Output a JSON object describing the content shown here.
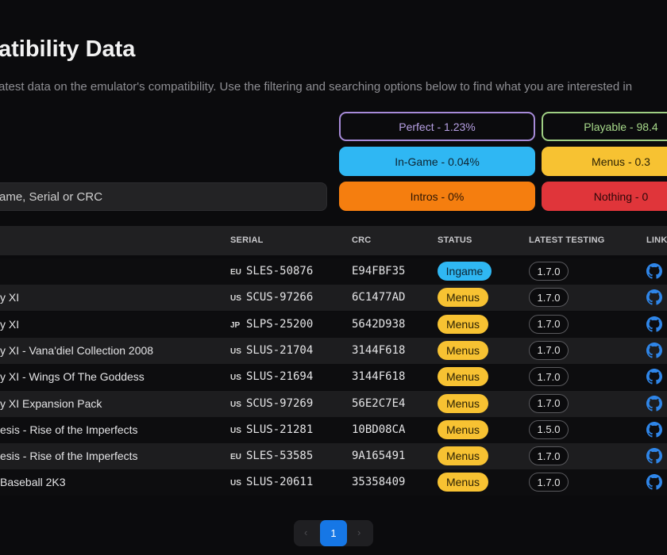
{
  "page": {
    "title": "atibility Data",
    "subtitle": "atest data on the emulator's compatibility. Use the filtering and searching options below to find what you are interested in"
  },
  "search": {
    "placeholder": "ame, Serial or CRC"
  },
  "filters": [
    {
      "label": "Perfect - 1.23%",
      "color": "#a78bd9"
    },
    {
      "label": "Playable - 98.4",
      "color": "#9fcf83"
    },
    {
      "label": "In-Game - 0.04%",
      "color": "#2fb7f3"
    },
    {
      "label": "Menus - 0.3",
      "color": "#f7c232"
    },
    {
      "label": "Intros - 0%",
      "color": "#f57e0f"
    },
    {
      "label": "Nothing - 0",
      "color": "#e0353a"
    }
  ],
  "table": {
    "headers": {
      "serial": "SERIAL",
      "crc": "CRC",
      "status": "STATUS",
      "latest": "LATEST TESTING",
      "links": "LINKS"
    },
    "rows": [
      {
        "name": "",
        "region": "EU",
        "serial": "SLES-50876",
        "crc": "E94FBF35",
        "status": "Ingame",
        "version": "1.7.0"
      },
      {
        "name": "y XI",
        "region": "US",
        "serial": "SCUS-97266",
        "crc": "6C1477AD",
        "status": "Menus",
        "version": "1.7.0"
      },
      {
        "name": "y XI",
        "region": "JP",
        "serial": "SLPS-25200",
        "crc": "5642D938",
        "status": "Menus",
        "version": "1.7.0"
      },
      {
        "name": "y XI - Vana'diel Collection 2008",
        "region": "US",
        "serial": "SLUS-21704",
        "crc": "3144F618",
        "status": "Menus",
        "version": "1.7.0"
      },
      {
        "name": "y XI - Wings Of The Goddess",
        "region": "US",
        "serial": "SLUS-21694",
        "crc": "3144F618",
        "status": "Menus",
        "version": "1.7.0"
      },
      {
        "name": "y XI Expansion Pack",
        "region": "US",
        "serial": "SCUS-97269",
        "crc": "56E2C7E4",
        "status": "Menus",
        "version": "1.7.0"
      },
      {
        "name": "esis - Rise of the Imperfects",
        "region": "US",
        "serial": "SLUS-21281",
        "crc": "10BD08CA",
        "status": "Menus",
        "version": "1.5.0"
      },
      {
        "name": "esis - Rise of the Imperfects",
        "region": "EU",
        "serial": "SLES-53585",
        "crc": "9A165491",
        "status": "Menus",
        "version": "1.7.0"
      },
      {
        "name": " Baseball 2K3",
        "region": "US",
        "serial": "SLUS-20611",
        "crc": "35358409",
        "status": "Menus",
        "version": "1.7.0"
      }
    ]
  },
  "pagination": {
    "current": "1",
    "prev": "‹",
    "next": "›"
  },
  "icons": {
    "link": "github-icon"
  },
  "colors": {
    "background": "#0b0b0d",
    "ingame": "#2fb7f3",
    "menus": "#f7c232",
    "github": "#2f86e9",
    "page_active": "#1677e6"
  }
}
